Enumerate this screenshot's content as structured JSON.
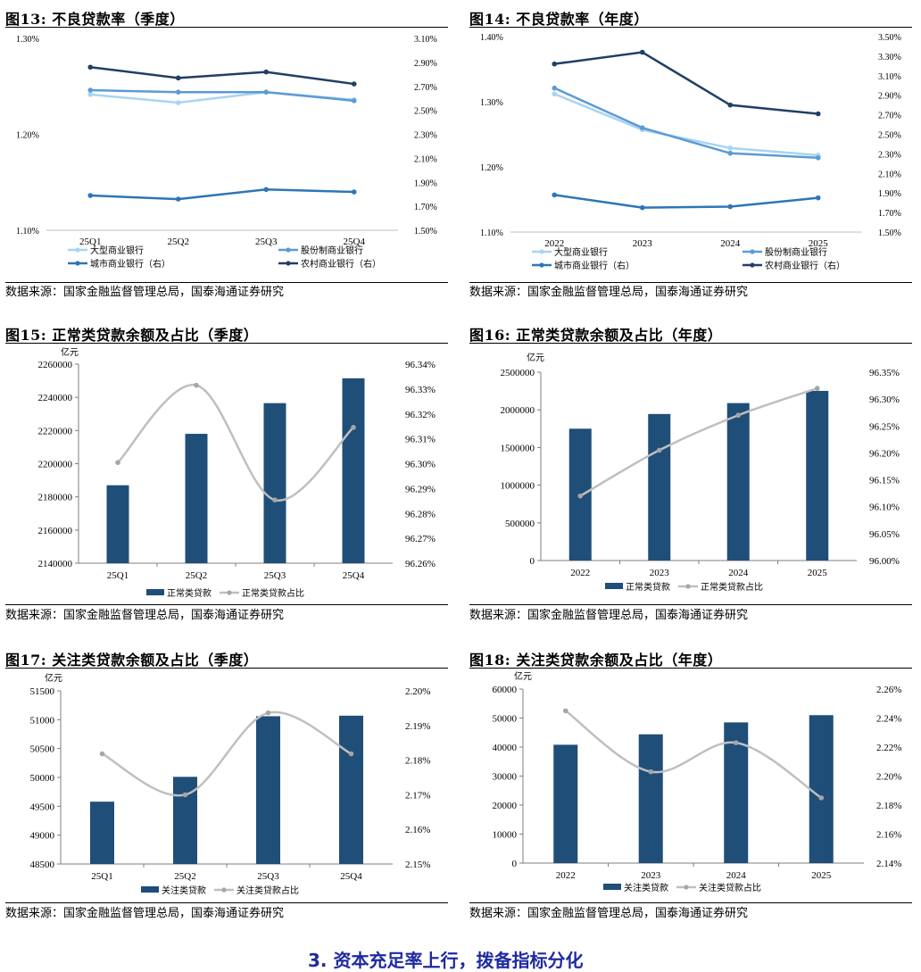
{
  "colors": {
    "large_bank": "#a9d4f2",
    "joint_stock": "#5b9bd5",
    "city_bank": "#2e75b6",
    "rural_bank": "#1f3f66",
    "bar": "#1f4e79",
    "ratio_line": "#bfbfbf",
    "footer": "#1f2aa0"
  },
  "source_text": "数据来源：国家金融监督管理总局，国泰海通证券研究",
  "footer_text": "3. 资本充足率上行，拨备指标分化",
  "legend_labels": {
    "large": "大型商业银行",
    "joint": "股份制商业银行",
    "city": "城市商业银行（右）",
    "rural": "农村商业银行（右）"
  },
  "chart_data": [
    {
      "id": "fig13",
      "type": "line",
      "title": "图13:  不良贷款率（季度）",
      "categories": [
        "25Q1",
        "25Q2",
        "25Q3",
        "25Q4"
      ],
      "ylim_left": [
        1.1,
        1.3
      ],
      "yticks_left": [
        "1.10%",
        "1.20%",
        "1.30%"
      ],
      "ylim_right": [
        1.5,
        3.1
      ],
      "yticks_right": [
        "1.50%",
        "1.70%",
        "1.90%",
        "2.10%",
        "2.30%",
        "2.50%",
        "2.70%",
        "2.90%",
        "3.10%"
      ],
      "series": [
        {
          "name": "大型商业银行",
          "axis": "left",
          "values": [
            1.2415,
            1.233,
            1.244,
            1.236
          ]
        },
        {
          "name": "股份制商业银行",
          "axis": "left",
          "values": [
            1.246,
            1.244,
            1.244,
            1.235
          ]
        },
        {
          "name": "城市商业银行（右）",
          "axis": "right",
          "values": [
            1.79,
            1.76,
            1.84,
            1.82
          ]
        },
        {
          "name": "农村商业银行（右）",
          "axis": "right",
          "values": [
            2.86,
            2.77,
            2.82,
            2.72
          ]
        }
      ]
    },
    {
      "id": "fig14",
      "type": "line",
      "title": "图14:  不良贷款率（年度）",
      "categories": [
        "2022",
        "2023",
        "2024",
        "2025"
      ],
      "ylim_left": [
        1.1,
        1.4
      ],
      "yticks_left": [
        "1.10%",
        "1.20%",
        "1.30%",
        "1.40%"
      ],
      "ylim_right": [
        1.5,
        3.5
      ],
      "yticks_right": [
        "1.50%",
        "1.70%",
        "1.90%",
        "2.10%",
        "2.30%",
        "2.50%",
        "2.70%",
        "2.90%",
        "3.10%",
        "3.30%",
        "3.50%"
      ],
      "series": [
        {
          "name": "大型商业银行",
          "axis": "left",
          "values": [
            1.312,
            1.257,
            1.229,
            1.218
          ]
        },
        {
          "name": "股份制商业银行",
          "axis": "left",
          "values": [
            1.321,
            1.26,
            1.221,
            1.214
          ]
        },
        {
          "name": "城市商业银行（右）",
          "axis": "right",
          "values": [
            1.88,
            1.75,
            1.76,
            1.85
          ]
        },
        {
          "name": "农村商业银行（右）",
          "axis": "right",
          "values": [
            3.22,
            3.34,
            2.8,
            2.71
          ]
        }
      ]
    },
    {
      "id": "fig15",
      "type": "bar",
      "title": "图15:  正常类贷款余额及占比（季度）",
      "unit_label": "亿元",
      "categories": [
        "25Q1",
        "25Q2",
        "25Q3",
        "25Q4"
      ],
      "values": [
        2187000,
        2218000,
        2236500,
        2251500
      ],
      "ylim": [
        2140000,
        2260000
      ],
      "yticks": [
        "2140000",
        "2160000",
        "2180000",
        "2200000",
        "2220000",
        "2240000",
        "2260000"
      ],
      "ratio_values": [
        96.303,
        96.336,
        96.287,
        96.318
      ],
      "ratio_ylim": [
        96.26,
        96.345
      ],
      "ratio_ticks": [
        "96.26%",
        "96.27%",
        "96.28%",
        "96.29%",
        "96.30%",
        "96.31%",
        "96.32%",
        "96.33%",
        "96.34%"
      ],
      "bar_legend": "正常类贷款",
      "line_legend": "正常类贷款占比"
    },
    {
      "id": "fig16",
      "type": "bar",
      "title": "图16:  正常类贷款余额及占比（年度）",
      "unit_label": "亿元",
      "categories": [
        "2022",
        "2023",
        "2024",
        "2025"
      ],
      "values": [
        1750000,
        1945000,
        2090000,
        2252000
      ],
      "ylim": [
        0,
        2500000
      ],
      "yticks": [
        "0",
        "500000",
        "1000000",
        "1500000",
        "2000000",
        "2500000"
      ],
      "ratio_values": [
        96.12,
        96.205,
        96.27,
        96.32
      ],
      "ratio_ylim": [
        96.0,
        96.35
      ],
      "ratio_ticks": [
        "96.00%",
        "96.05%",
        "96.10%",
        "96.15%",
        "96.20%",
        "96.25%",
        "96.30%",
        "96.35%"
      ],
      "bar_legend": "正常类贷款",
      "line_legend": "正常类贷款占比"
    },
    {
      "id": "fig17",
      "type": "bar",
      "title": "图17:  关注类贷款余额及占比（季度）",
      "unit_label": "亿元",
      "categories": [
        "25Q1",
        "25Q2",
        "25Q3",
        "25Q4"
      ],
      "values": [
        49580,
        50010,
        51060,
        51070
      ],
      "ylim": [
        48500,
        51500
      ],
      "yticks": [
        "48500",
        "49000",
        "49500",
        "50000",
        "50500",
        "51000",
        "51500"
      ],
      "ratio_values": [
        2.185,
        2.172,
        2.198,
        2.185
      ],
      "ratio_ylim": [
        2.15,
        2.205
      ],
      "ratio_ticks": [
        "2.15%",
        "2.16%",
        "2.17%",
        "2.18%",
        "2.19%",
        "2.20%"
      ],
      "bar_legend": "关注类贷款",
      "line_legend": "关注类贷款占比"
    },
    {
      "id": "fig18",
      "type": "bar",
      "title": "图18:  关注类贷款余额及占比（年度）",
      "unit_label": "亿元",
      "categories": [
        "2022",
        "2023",
        "2024",
        "2025"
      ],
      "values": [
        40800,
        44400,
        48500,
        51000
      ],
      "ylim": [
        0,
        60000
      ],
      "yticks": [
        "0",
        "10000",
        "20000",
        "30000",
        "40000",
        "50000",
        "60000"
      ],
      "ratio_values": [
        2.245,
        2.203,
        2.223,
        2.185
      ],
      "ratio_ylim": [
        2.14,
        2.26
      ],
      "ratio_ticks": [
        "2.14%",
        "2.16%",
        "2.18%",
        "2.20%",
        "2.22%",
        "2.24%",
        "2.26%"
      ],
      "bar_legend": "关注类贷款",
      "line_legend": "关注类贷款占比"
    }
  ]
}
